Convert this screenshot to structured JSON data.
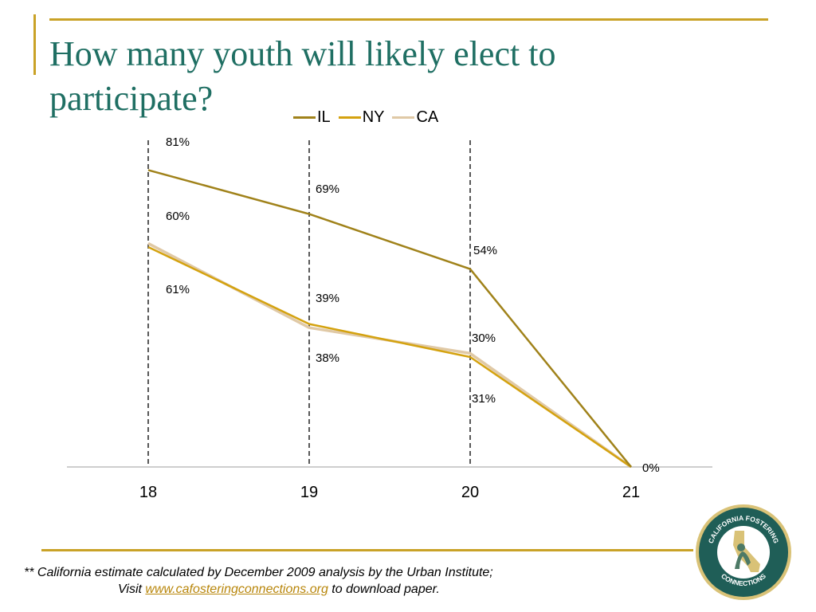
{
  "title": "How many youth will likely elect to participate?",
  "colors": {
    "IL": "#a0821a",
    "NY": "#d4a20f",
    "CA": "#e0c9a6",
    "accent": "#c9a227",
    "title": "#1f6f63"
  },
  "chart_data": {
    "type": "line",
    "categories": [
      "18",
      "19",
      "20",
      "21"
    ],
    "ylim": [
      0,
      100
    ],
    "grid": false,
    "legend_position": "top",
    "series": [
      {
        "name": "IL",
        "values": [
          81,
          69,
          54,
          0
        ]
      },
      {
        "name": "NY",
        "values": [
          60,
          39,
          30,
          0
        ]
      },
      {
        "name": "CA",
        "values": [
          61,
          38,
          31,
          0
        ]
      }
    ],
    "annotations": [
      "81%",
      "60%",
      "61%",
      "69%",
      "39%",
      "38%",
      "54%",
      "30%",
      "31%",
      "0%"
    ]
  },
  "footnote": {
    "line1": "** California estimate calculated by December 2009 analysis by the Urban Institute;",
    "line2_prefix": "Visit ",
    "link_text": "www.cafosteringconnections.org",
    "line2_suffix": " to download paper."
  },
  "logo": {
    "top_text": "CALIFORNIA FOSTERING",
    "bottom_text": "CONNECTIONS"
  }
}
